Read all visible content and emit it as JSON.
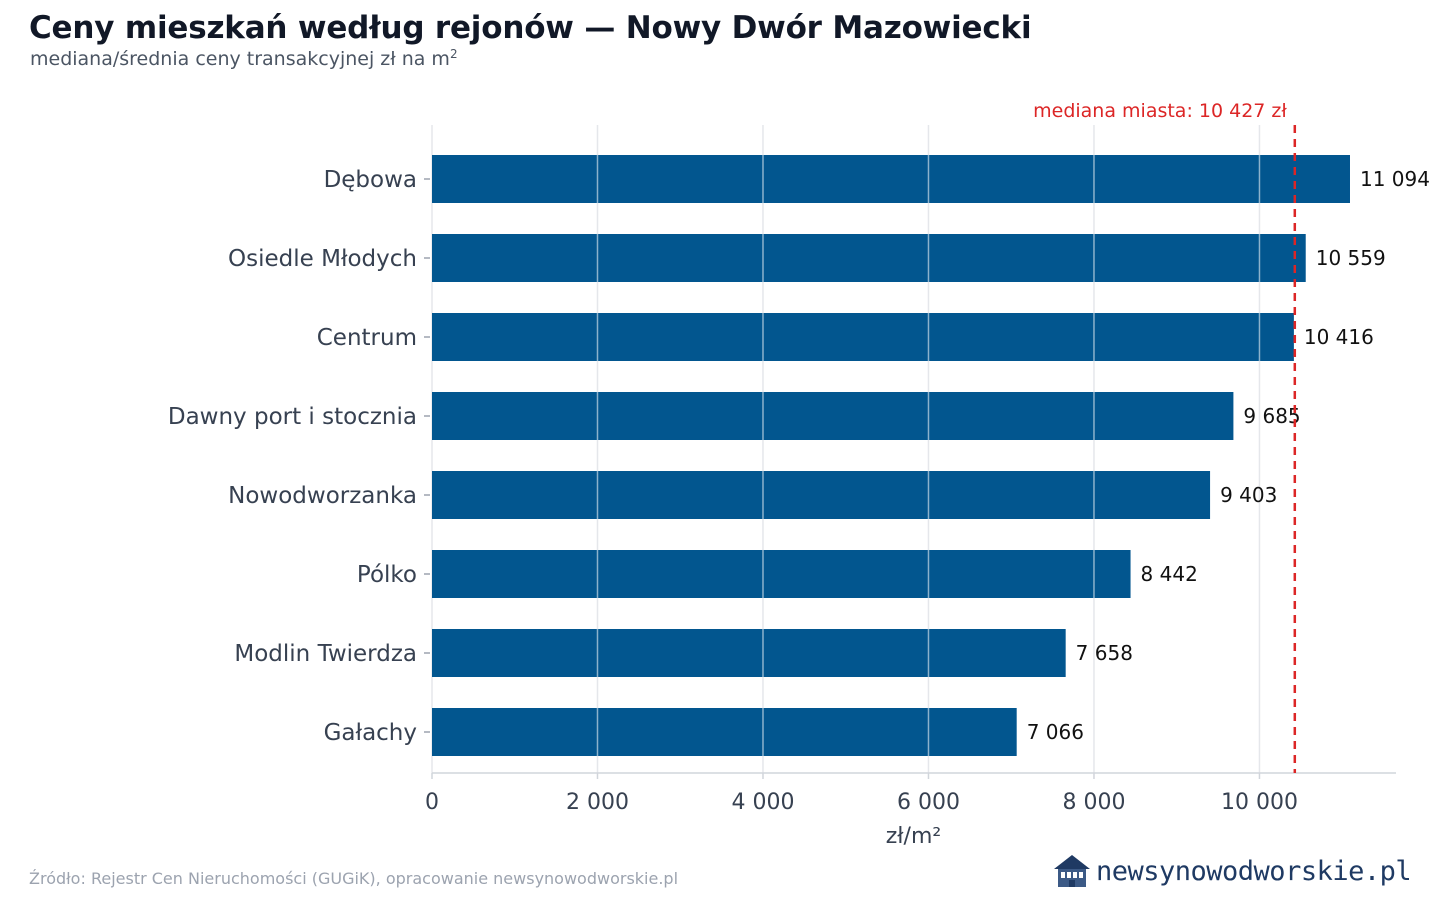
{
  "title": "Ceny mieszkań według rejonów — Nowy Dwór Mazowiecki",
  "subtitle": {
    "text": "mediana/średnia ceny transakcyjnej zł na m",
    "sup": "2"
  },
  "source": "Źródło: Rejestr Cen Nieruchomości (GUGiK), opracowanie newsynowodworskie.pl",
  "logo": {
    "icon": "house-icon",
    "text": "newsynowodworskie.pl"
  },
  "colors": {
    "bar": "#02568f",
    "median_line": "#dc2626",
    "grid": "#e5e7eb",
    "axis_text": "#374151",
    "value_text": "#111111"
  },
  "chart_data": {
    "type": "bar",
    "orientation": "horizontal",
    "categories": [
      "Dębowa",
      "Osiedle Młodych",
      "Centrum",
      "Dawny port i stocznia",
      "Nowodworzanka",
      "Pólko",
      "Modlin Twierdza",
      "Gałachy"
    ],
    "values": [
      11094,
      10559,
      10416,
      9685,
      9403,
      8442,
      7658,
      7066
    ],
    "value_labels": [
      "11 094",
      "10 559",
      "10 416",
      "9 685",
      "9 403",
      "8 442",
      "7 658",
      "7 066"
    ],
    "xlabel": "zł/m²",
    "ylabel": "",
    "xlim": [
      0,
      11650
    ],
    "xticks": [
      0,
      2000,
      4000,
      6000,
      8000,
      10000
    ],
    "xtick_labels": [
      "0",
      "2 000",
      "4 000",
      "6 000",
      "8 000",
      "10 000"
    ],
    "reference_line": {
      "value": 10427,
      "label": "mediana miasta: 10 427 zł",
      "style": "dashed"
    },
    "grid": "vertical",
    "legend": "none"
  }
}
